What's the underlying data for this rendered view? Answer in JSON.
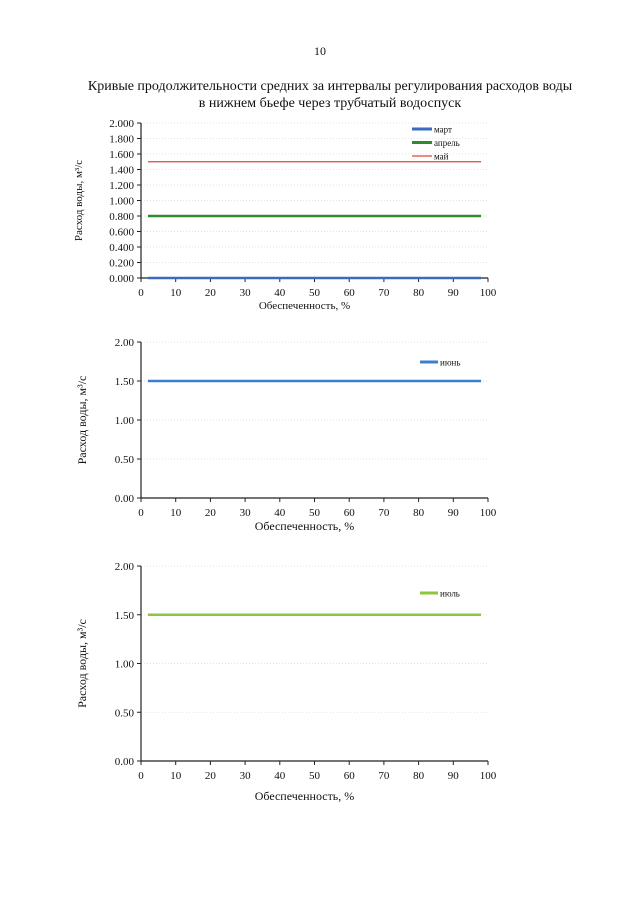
{
  "page_number": "10",
  "title_line1": "Кривые продолжительности средних за интервалы регулирования расходов воды",
  "title_line2": "в нижнем бьефе через трубчатый водоспуск",
  "colors": {
    "march": "#3a6bbf",
    "april": "#2e8b2e",
    "may": "#d84a3a",
    "june_blue": "#3d7fcf",
    "july_green": "#8cc63f",
    "axis": "#222222",
    "grid": "#d9d9d9"
  },
  "chart_data": [
    {
      "type": "line",
      "title": "",
      "xlabel": "Обеспеченность, %",
      "ylabel": "Расход воды, м³/с",
      "ylim": [
        0,
        2
      ],
      "xlim": [
        0,
        100
      ],
      "yticks": [
        "0.000",
        "0.200",
        "0.400",
        "0.600",
        "0.800",
        "1.000",
        "1.200",
        "1.400",
        "1.600",
        "1.800",
        "2.000"
      ],
      "xticks": [
        "0",
        "10",
        "20",
        "30",
        "40",
        "50",
        "60",
        "70",
        "80",
        "90",
        "100"
      ],
      "legend_position": "top-right",
      "series": [
        {
          "name": "март",
          "color": "#3a6bbf",
          "x": [
            2,
            98
          ],
          "values": [
            0.0,
            0.0
          ]
        },
        {
          "name": "апрель",
          "color": "#2e8b2e",
          "x": [
            2,
            98
          ],
          "values": [
            0.8,
            0.8
          ]
        },
        {
          "name": "май",
          "color": "#d84a3a",
          "x": [
            2,
            98
          ],
          "values": [
            1.5,
            1.5
          ]
        }
      ]
    },
    {
      "type": "line",
      "title": "",
      "xlabel": "Обеспеченность, %",
      "ylabel": "Расход воды, м³/с",
      "ylim": [
        0,
        2
      ],
      "xlim": [
        0,
        100
      ],
      "yticks": [
        "0.00",
        "0.50",
        "1.00",
        "1.50",
        "2.00"
      ],
      "xticks": [
        "0",
        "10",
        "20",
        "30",
        "40",
        "50",
        "60",
        "70",
        "80",
        "90",
        "100"
      ],
      "legend_position": "top-right",
      "series": [
        {
          "name": "июнь",
          "color": "#3d7fcf",
          "x": [
            2,
            98
          ],
          "values": [
            1.5,
            1.5
          ]
        }
      ]
    },
    {
      "type": "line",
      "title": "",
      "xlabel": "Обеспеченность, %",
      "ylabel": "Расход воды, м³/с",
      "ylim": [
        0,
        2
      ],
      "xlim": [
        0,
        100
      ],
      "yticks": [
        "0.00",
        "0.50",
        "1.00",
        "1.50",
        "2.00"
      ],
      "xticks": [
        "0",
        "10",
        "20",
        "30",
        "40",
        "50",
        "60",
        "70",
        "80",
        "90",
        "100"
      ],
      "legend_position": "top-right",
      "series": [
        {
          "name": "июль",
          "color": "#8cc63f",
          "x": [
            2,
            98
          ],
          "values": [
            1.5,
            1.5
          ]
        }
      ]
    }
  ]
}
